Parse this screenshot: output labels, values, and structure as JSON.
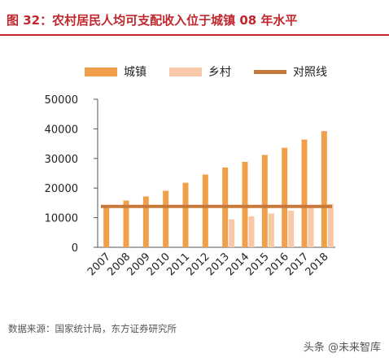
{
  "title": "图 32：农村居民人均可支配收入位于城镇 08 年水平",
  "legend": {
    "urban": "城镇",
    "rural": "乡村",
    "reference": "对照线"
  },
  "source": "数据来源：国家统计局，东方证券研究所",
  "watermark": "头条 @未来智库",
  "colors": {
    "urban": "#f0a04b",
    "rural": "#f8c9a8",
    "reference": "#c8783a",
    "title": "#c1272d"
  },
  "chart_data": {
    "type": "bar",
    "categories": [
      "2007",
      "2008",
      "2009",
      "2010",
      "2011",
      "2012",
      "2013",
      "2014",
      "2015",
      "2016",
      "2017",
      "2018"
    ],
    "series": [
      {
        "name": "城镇",
        "values": [
          13786,
          15781,
          17175,
          19109,
          21810,
          24565,
          26955,
          28844,
          31195,
          33616,
          36396,
          39251
        ]
      },
      {
        "name": "乡村",
        "values": [
          null,
          null,
          null,
          null,
          null,
          null,
          9430,
          10489,
          11422,
          12363,
          13432,
          14617
        ]
      }
    ],
    "reference_line": {
      "name": "对照线",
      "value": 13800
    },
    "y_ticks": [
      "0",
      "10000",
      "20000",
      "30000",
      "40000",
      "50000"
    ],
    "ylim": [
      0,
      50000
    ],
    "grid": false,
    "legend_position": "top"
  }
}
